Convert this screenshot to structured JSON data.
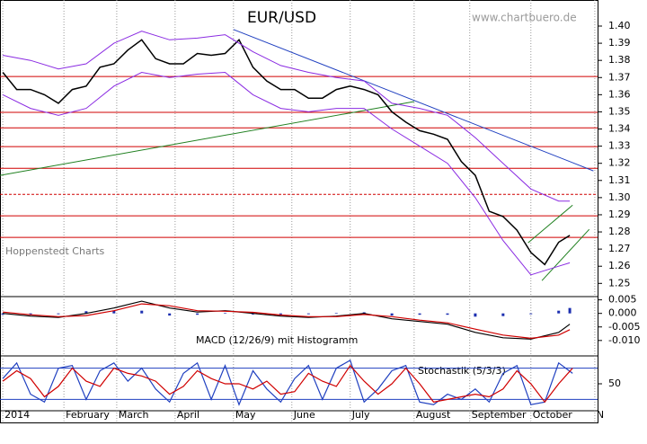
{
  "chart_data": {
    "type": "line",
    "title": "EUR/USD",
    "subtitle": "www.chartbuero.de",
    "annotations": [
      "Hoppenstedt Charts"
    ],
    "xlim": [
      -1,
      214
    ],
    "xticks": [
      {
        "value": 0,
        "label": "2014"
      },
      {
        "value": 22,
        "label": "February"
      },
      {
        "value": 41,
        "label": "March"
      },
      {
        "value": 62,
        "label": "April"
      },
      {
        "value": 83,
        "label": "May"
      },
      {
        "value": 104,
        "label": "June"
      },
      {
        "value": 125,
        "label": "July"
      },
      {
        "value": 148,
        "label": "August"
      },
      {
        "value": 168,
        "label": "September"
      },
      {
        "value": 190,
        "label": "October"
      },
      {
        "value": 213,
        "label": "N"
      }
    ],
    "grid": true,
    "price": {
      "ylim": [
        1.2423,
        1.4152
      ],
      "yticks": [
        {
          "value": 1.25,
          "label": "1.25"
        },
        {
          "value": 1.26,
          "label": "1.26"
        },
        {
          "value": 1.27,
          "label": "1.27"
        },
        {
          "value": 1.28,
          "label": "1.28"
        },
        {
          "value": 1.29,
          "label": "1.29"
        },
        {
          "value": 1.3,
          "label": "1.30"
        },
        {
          "value": 1.31,
          "label": "1.31"
        },
        {
          "value": 1.32,
          "label": "1.32"
        },
        {
          "value": 1.33,
          "label": "1.33"
        },
        {
          "value": 1.34,
          "label": "1.34"
        },
        {
          "value": 1.35,
          "label": "1.35"
        },
        {
          "value": 1.36,
          "label": "1.36"
        },
        {
          "value": 1.37,
          "label": "1.37"
        },
        {
          "value": 1.38,
          "label": "1.38"
        },
        {
          "value": 1.39,
          "label": "1.39"
        },
        {
          "value": 1.4,
          "label": "1.40"
        }
      ],
      "series": [
        {
          "color": "#000000",
          "x": [
            0,
            5,
            10,
            15,
            20,
            25,
            30,
            35,
            40,
            45,
            50,
            55,
            60,
            65,
            70,
            75,
            80,
            85,
            90,
            95,
            100,
            105,
            110,
            115,
            120,
            125,
            130,
            135,
            140,
            145,
            150,
            155,
            160,
            165,
            170,
            175,
            180,
            185,
            190,
            195,
            200,
            204
          ],
          "values": [
            1.373,
            1.363,
            1.363,
            1.36,
            1.355,
            1.363,
            1.365,
            1.376,
            1.378,
            1.386,
            1.392,
            1.381,
            1.378,
            1.378,
            1.384,
            1.383,
            1.384,
            1.392,
            1.376,
            1.368,
            1.363,
            1.363,
            1.358,
            1.358,
            1.363,
            1.365,
            1.363,
            1.36,
            1.35,
            1.344,
            1.339,
            1.337,
            1.334,
            1.321,
            1.313,
            1.292,
            1.289,
            1.281,
            1.268,
            1.261,
            1.274,
            1.278
          ]
        },
        {
          "color": "#8a2be2",
          "x": [
            0,
            10,
            20,
            30,
            40,
            50,
            60,
            70,
            80,
            90,
            100,
            110,
            120,
            130,
            140,
            150,
            160,
            170,
            180,
            190,
            200,
            204
          ],
          "values": [
            1.383,
            1.38,
            1.375,
            1.378,
            1.39,
            1.397,
            1.392,
            1.393,
            1.395,
            1.385,
            1.377,
            1.373,
            1.37,
            1.368,
            1.355,
            1.352,
            1.348,
            1.335,
            1.32,
            1.305,
            1.298,
            1.298
          ]
        },
        {
          "color": "#8a2be2",
          "x": [
            0,
            10,
            20,
            30,
            40,
            50,
            60,
            70,
            80,
            90,
            100,
            110,
            120,
            130,
            140,
            150,
            160,
            170,
            180,
            190,
            200,
            204
          ],
          "values": [
            1.36,
            1.352,
            1.348,
            1.352,
            1.365,
            1.373,
            1.37,
            1.372,
            1.373,
            1.36,
            1.352,
            1.35,
            1.352,
            1.352,
            1.34,
            1.33,
            1.32,
            1.3,
            1.275,
            1.255,
            1.26,
            1.262
          ]
        }
      ],
      "levels": [
        1.3706,
        1.3497,
        1.3407,
        1.3297,
        1.3171,
        1.3019,
        1.2894,
        1.2768
      ],
      "levels_dashed": [
        false,
        false,
        false,
        false,
        false,
        true,
        false,
        false
      ],
      "level_color": "#d00000",
      "trendlines": [
        {
          "color": "#2040c0",
          "x": [
            83,
            212.5
          ],
          "values": [
            1.398,
            1.3156
          ]
        },
        {
          "color": "#208020",
          "x": [
            -1,
            148
          ],
          "values": [
            1.313,
            1.356
          ]
        },
        {
          "color": "#208020",
          "x": [
            189,
            205
          ],
          "values": [
            1.2737,
            1.2956
          ]
        },
        {
          "color": "#208020",
          "x": [
            194,
            211
          ],
          "values": [
            1.2516,
            1.2815
          ]
        }
      ]
    },
    "macd": {
      "label": "MACD (12/26/9) mit Histogramm",
      "ylim": [
        -0.0157,
        0.0062
      ],
      "yticks": [
        {
          "value": 0.005,
          "label": "0.005"
        },
        {
          "value": 0,
          "label": "0.000"
        },
        {
          "value": -0.005,
          "label": "-0.005"
        },
        {
          "value": -0.01,
          "label": "-0.010"
        }
      ],
      "x": [
        0,
        10,
        20,
        30,
        40,
        50,
        60,
        70,
        80,
        90,
        100,
        110,
        120,
        130,
        140,
        150,
        160,
        170,
        180,
        190,
        200,
        204
      ],
      "series": [
        {
          "color": "#000000",
          "values": [
            0,
            -0.001,
            -0.0015,
            0,
            0.002,
            0.0045,
            0.002,
            0.0005,
            0.001,
            0,
            -0.001,
            -0.0015,
            -0.001,
            0,
            -0.002,
            -0.003,
            -0.004,
            -0.007,
            -0.009,
            -0.0095,
            -0.007,
            -0.004
          ]
        },
        {
          "color": "#d00000",
          "values": [
            0.0005,
            -0.0005,
            -0.0012,
            -0.0008,
            0.001,
            0.0035,
            0.0028,
            0.001,
            0.0008,
            0.0004,
            -0.0006,
            -0.0012,
            -0.0012,
            -0.0004,
            -0.0012,
            -0.0025,
            -0.0035,
            -0.0058,
            -0.008,
            -0.0092,
            -0.008,
            -0.006
          ]
        }
      ],
      "histogram": {
        "color": "#1c2fb0",
        "values": [
          -0.0005,
          -0.0005,
          -0.0003,
          0.0008,
          0.001,
          0.001,
          -0.0008,
          -0.0005,
          0.0002,
          -0.0004,
          -0.0004,
          -0.0003,
          0.0002,
          0.0004,
          -0.0008,
          -0.0005,
          -0.0005,
          -0.0012,
          -0.001,
          -0.0003,
          0.001,
          0.002
        ]
      }
    },
    "stochastic": {
      "label": "Stochastik (5/3/3)",
      "ylim": [
        0,
        100
      ],
      "yticks": [
        50
      ],
      "levels": [
        80,
        20
      ],
      "level_color": "#2040c0",
      "x": [
        0,
        5,
        10,
        15,
        20,
        25,
        30,
        35,
        40,
        45,
        50,
        55,
        60,
        65,
        70,
        75,
        80,
        85,
        90,
        95,
        100,
        105,
        110,
        115,
        120,
        125,
        130,
        135,
        140,
        145,
        150,
        155,
        160,
        165,
        170,
        175,
        180,
        185,
        190,
        195,
        200,
        205
      ],
      "series": [
        {
          "color": "#2040c0",
          "values": [
            60,
            90,
            30,
            15,
            80,
            85,
            20,
            75,
            90,
            55,
            80,
            40,
            15,
            70,
            90,
            20,
            85,
            10,
            75,
            40,
            15,
            60,
            85,
            20,
            80,
            95,
            15,
            40,
            75,
            85,
            15,
            10,
            30,
            20,
            40,
            15,
            70,
            85,
            10,
            15,
            90,
            70
          ]
        },
        {
          "color": "#d00000",
          "values": [
            55,
            75,
            60,
            25,
            45,
            80,
            55,
            45,
            80,
            70,
            65,
            55,
            30,
            45,
            75,
            60,
            50,
            50,
            40,
            55,
            30,
            35,
            70,
            55,
            45,
            85,
            55,
            30,
            50,
            80,
            50,
            15,
            20,
            25,
            30,
            25,
            40,
            75,
            50,
            15,
            50,
            80
          ]
        }
      ]
    }
  }
}
